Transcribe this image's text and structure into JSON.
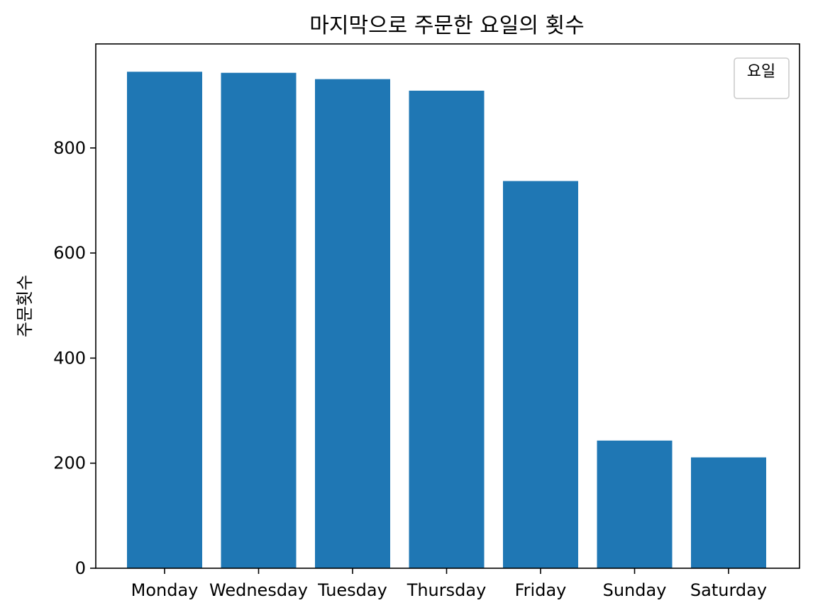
{
  "chart_data": {
    "type": "bar",
    "title": "마지막으로 주문한 요일의 횟수",
    "xlabel": "",
    "ylabel": "주문횟수",
    "categories": [
      "Monday",
      "Wednesday",
      "Tuesday",
      "Thursday",
      "Friday",
      "Sunday",
      "Saturday"
    ],
    "values": [
      945,
      943,
      931,
      909,
      737,
      243,
      211
    ],
    "ylim": [
      0,
      1000
    ],
    "yticks": [
      "0",
      "200",
      "400",
      "600",
      "800"
    ],
    "legend": {
      "title": "요일",
      "placement": "top-right",
      "entries": []
    },
    "grid": false,
    "bar_color": "#1f77b4"
  }
}
